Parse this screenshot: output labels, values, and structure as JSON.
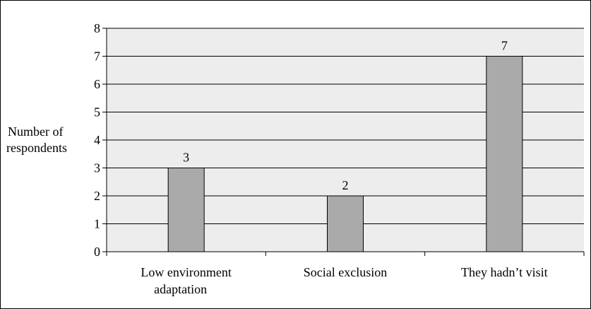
{
  "chart_data": {
    "type": "bar",
    "categories": [
      "Low environment adaptation",
      "Social exclusion",
      "They hadn’t visit"
    ],
    "category_label_lines": [
      [
        "Low environment",
        "adaptation"
      ],
      [
        "Social exclusion"
      ],
      [
        "They hadn’t visit"
      ]
    ],
    "values": [
      3,
      2,
      7
    ],
    "data_labels": [
      "3",
      "2",
      "7"
    ],
    "title": "",
    "xlabel": "",
    "ylabel": "Number of respondents",
    "ylabel_lines": [
      "Number of",
      "respondents"
    ],
    "ylim": [
      0,
      8
    ],
    "yticks": [
      "0",
      "1",
      "2",
      "3",
      "4",
      "5",
      "6",
      "7",
      "8"
    ],
    "grid": true,
    "legend": false,
    "colors": {
      "plot_background": "#ededed",
      "bar_fill": "#aaaaaa",
      "bar_stroke": "#000000",
      "gridline": "#000000"
    }
  }
}
